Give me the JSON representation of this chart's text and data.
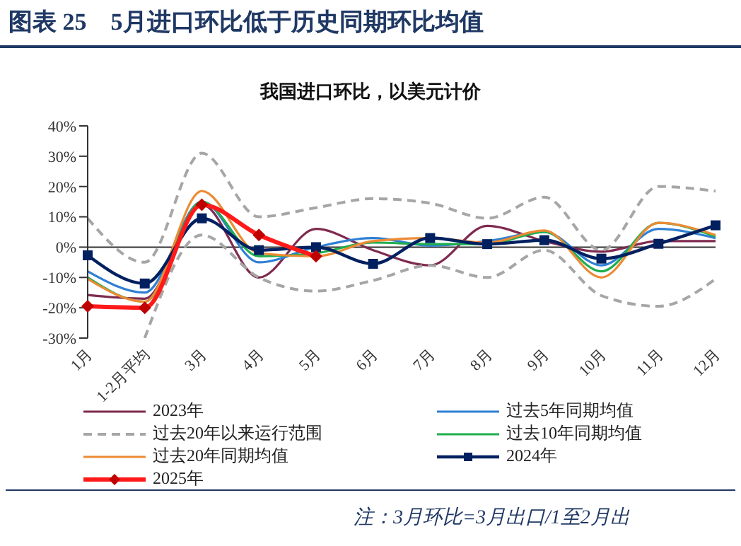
{
  "chart_data": {
    "type": "line",
    "title": "图表 25　5月进口环比低于历史同期环比均值",
    "subtitle": "我国进口环比，以美元计价",
    "categories": [
      "1月",
      "1-2月平均",
      "3月",
      "4月",
      "5月",
      "6月",
      "7月",
      "8月",
      "9月",
      "10月",
      "11月",
      "12月"
    ],
    "series": [
      {
        "name": "2023年",
        "color": "#7f2a4f",
        "values": [
          -15.8,
          -17,
          14,
          -10,
          6,
          -1,
          -6,
          7,
          2,
          -1.5,
          2,
          2
        ]
      },
      {
        "name": "过去5年同期均值",
        "color": "#2f7fd4",
        "values": [
          -8,
          -15,
          15,
          -5,
          0,
          3,
          0.5,
          2,
          5,
          -6,
          6,
          3
        ]
      },
      {
        "name": "过去20年以来运行范围",
        "color": "#a6a6a6",
        "line_style": "dashed",
        "values": [
          9.5,
          -5,
          31,
          10,
          13,
          16,
          14.5,
          9.5,
          16.5,
          -1,
          20,
          18.5
        ]
      },
      {
        "name": "过去10年同期均值",
        "color": "#1fae4f",
        "values": [
          -10,
          -18,
          15,
          -3,
          -2,
          1.5,
          1,
          1,
          5,
          -8,
          8,
          3.5
        ]
      },
      {
        "name": "过去20年同期均值",
        "color": "#ec8b34",
        "values": [
          -10.5,
          -18,
          18.5,
          -2,
          -3,
          2,
          3,
          1.5,
          5.5,
          -10,
          8,
          4
        ]
      },
      {
        "name": "2024年",
        "color": "#002060",
        "marker": "square",
        "values": [
          -2.7,
          -12,
          9.5,
          -1,
          0,
          -5.5,
          3,
          1,
          2.3,
          -3.8,
          1.1,
          7.2
        ]
      },
      {
        "color": "#a6a6a6",
        "line_style": "dashed",
        "values": [
          null,
          -30,
          4,
          -10,
          -14.5,
          -11,
          -6,
          -10,
          -1,
          -16,
          -19.5,
          -10.5
        ]
      },
      {
        "name": "2025年",
        "color": "#ff1a1a",
        "marker": "diamond",
        "values": [
          -19.5,
          -20,
          14,
          4,
          -3,
          null,
          null,
          null,
          null,
          null,
          null,
          null
        ]
      }
    ],
    "ylim": [
      -30,
      40
    ],
    "yticks": [
      {
        "value": -30,
        "label": "-30%"
      },
      {
        "value": -20,
        "label": "-20%"
      },
      {
        "value": -10,
        "label": "-10%"
      },
      {
        "value": 0,
        "label": "0%"
      },
      {
        "value": 10,
        "label": "10%"
      },
      {
        "value": 20,
        "label": "20%"
      },
      {
        "value": 30,
        "label": "30%"
      },
      {
        "value": 40,
        "label": "40%"
      }
    ],
    "ref_lines": [
      {
        "axis": "y",
        "value": 0,
        "color": "#333333"
      }
    ],
    "legend": "bottom",
    "annotations": [
      "注：3月环比=3月出口/1至2月出"
    ]
  }
}
